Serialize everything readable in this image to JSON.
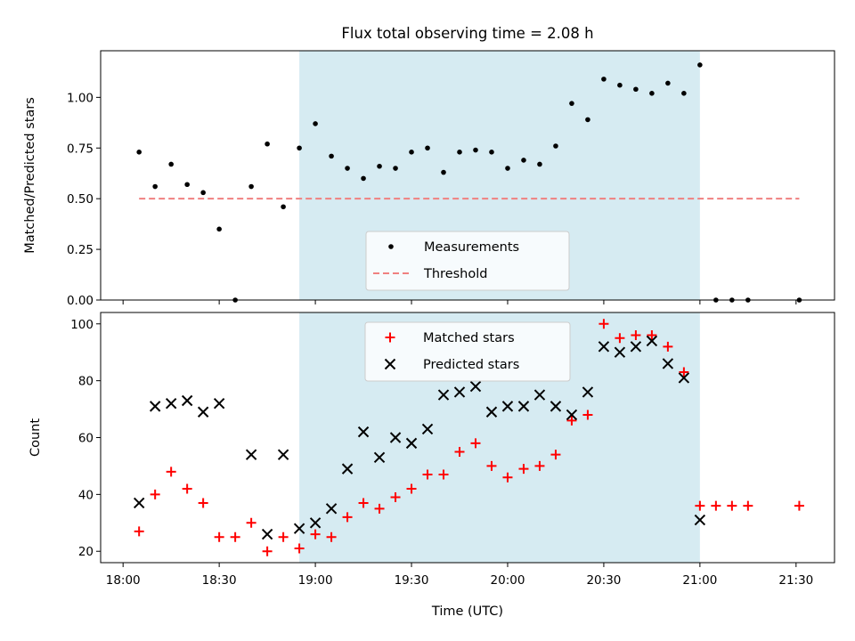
{
  "figure": {
    "title": "Flux total observing time = 2.08 h",
    "shaded_interval": [
      "18:55",
      "21:00"
    ]
  },
  "colors": {
    "shade": "#add8e6",
    "threshold": "#f08080",
    "matched": "#ff0000",
    "predicted": "#000000",
    "measurement": "#000000"
  },
  "chart_data": [
    {
      "type": "scatter",
      "panel": "top",
      "title": "Flux total observing time = 2.08 h",
      "xlabel": "",
      "ylabel": "Matched/Predicted stars",
      "xlim": [
        "17:53",
        "21:42"
      ],
      "ylim": [
        0.0,
        1.23
      ],
      "yticks": [
        "0.00",
        "0.25",
        "0.50",
        "0.75",
        "1.00"
      ],
      "legend": "lower-center",
      "series": [
        {
          "name": "Measurements",
          "marker": "dot",
          "points": [
            [
              "18:05",
              0.73
            ],
            [
              "18:10",
              0.56
            ],
            [
              "18:15",
              0.67
            ],
            [
              "18:20",
              0.57
            ],
            [
              "18:25",
              0.53
            ],
            [
              "18:30",
              0.35
            ],
            [
              "18:35",
              0.0
            ],
            [
              "18:40",
              0.56
            ],
            [
              "18:45",
              0.77
            ],
            [
              "18:50",
              0.46
            ],
            [
              "18:55",
              0.75
            ],
            [
              "19:00",
              0.87
            ],
            [
              "19:05",
              0.71
            ],
            [
              "19:10",
              0.65
            ],
            [
              "19:15",
              0.6
            ],
            [
              "19:20",
              0.66
            ],
            [
              "19:25",
              0.65
            ],
            [
              "19:30",
              0.73
            ],
            [
              "19:35",
              0.75
            ],
            [
              "19:40",
              0.63
            ],
            [
              "19:45",
              0.73
            ],
            [
              "19:50",
              0.74
            ],
            [
              "19:55",
              0.73
            ],
            [
              "20:00",
              0.65
            ],
            [
              "20:05",
              0.69
            ],
            [
              "20:10",
              0.67
            ],
            [
              "20:15",
              0.76
            ],
            [
              "20:20",
              0.97
            ],
            [
              "20:25",
              0.89
            ],
            [
              "20:30",
              1.09
            ],
            [
              "20:35",
              1.06
            ],
            [
              "20:40",
              1.04
            ],
            [
              "20:45",
              1.02
            ],
            [
              "20:50",
              1.07
            ],
            [
              "20:55",
              1.02
            ],
            [
              "21:00",
              1.16
            ],
            [
              "21:05",
              0.0
            ],
            [
              "21:10",
              0.0
            ],
            [
              "21:15",
              0.0
            ],
            [
              "21:31",
              0.0
            ]
          ]
        },
        {
          "name": "Threshold",
          "marker": "dashed-line",
          "points": [
            [
              "18:05",
              0.5
            ],
            [
              "21:31",
              0.5
            ]
          ]
        }
      ]
    },
    {
      "type": "scatter",
      "panel": "bottom",
      "xlabel": "Time (UTC)",
      "ylabel": "Count",
      "xlim": [
        "17:53",
        "21:42"
      ],
      "ylim": [
        16,
        104
      ],
      "xticks": [
        "18:00",
        "18:30",
        "19:00",
        "19:30",
        "20:00",
        "20:30",
        "21:00",
        "21:30"
      ],
      "yticks": [
        "20",
        "40",
        "60",
        "80",
        "100"
      ],
      "legend": "upper-center",
      "series": [
        {
          "name": "Matched stars",
          "marker": "plus",
          "points": [
            [
              "18:05",
              27
            ],
            [
              "18:10",
              40
            ],
            [
              "18:15",
              48
            ],
            [
              "18:20",
              42
            ],
            [
              "18:25",
              37
            ],
            [
              "18:30",
              25
            ],
            [
              "18:35",
              25
            ],
            [
              "18:40",
              30
            ],
            [
              "18:45",
              20
            ],
            [
              "18:50",
              25
            ],
            [
              "18:55",
              21
            ],
            [
              "19:00",
              26
            ],
            [
              "19:05",
              25
            ],
            [
              "19:10",
              32
            ],
            [
              "19:15",
              37
            ],
            [
              "19:20",
              35
            ],
            [
              "19:25",
              39
            ],
            [
              "19:30",
              42
            ],
            [
              "19:35",
              47
            ],
            [
              "19:40",
              47
            ],
            [
              "19:45",
              55
            ],
            [
              "19:50",
              58
            ],
            [
              "19:55",
              50
            ],
            [
              "20:00",
              46
            ],
            [
              "20:05",
              49
            ],
            [
              "20:10",
              50
            ],
            [
              "20:15",
              54
            ],
            [
              "20:20",
              66
            ],
            [
              "20:25",
              68
            ],
            [
              "20:30",
              100
            ],
            [
              "20:35",
              95
            ],
            [
              "20:40",
              96
            ],
            [
              "20:45",
              96
            ],
            [
              "20:50",
              92
            ],
            [
              "20:55",
              83
            ],
            [
              "21:00",
              36
            ],
            [
              "21:05",
              36
            ],
            [
              "21:10",
              36
            ],
            [
              "21:15",
              36
            ],
            [
              "21:31",
              36
            ]
          ]
        },
        {
          "name": "Predicted stars",
          "marker": "x",
          "points": [
            [
              "18:05",
              37
            ],
            [
              "18:10",
              71
            ],
            [
              "18:15",
              72
            ],
            [
              "18:20",
              73
            ],
            [
              "18:25",
              69
            ],
            [
              "18:30",
              72
            ],
            [
              "18:40",
              54
            ],
            [
              "18:45",
              26
            ],
            [
              "18:50",
              54
            ],
            [
              "18:55",
              28
            ],
            [
              "19:00",
              30
            ],
            [
              "19:05",
              35
            ],
            [
              "19:10",
              49
            ],
            [
              "19:15",
              62
            ],
            [
              "19:20",
              53
            ],
            [
              "19:25",
              60
            ],
            [
              "19:30",
              58
            ],
            [
              "19:35",
              63
            ],
            [
              "19:40",
              75
            ],
            [
              "19:45",
              76
            ],
            [
              "19:50",
              78
            ],
            [
              "19:55",
              69
            ],
            [
              "20:00",
              71
            ],
            [
              "20:05",
              71
            ],
            [
              "20:10",
              75
            ],
            [
              "20:15",
              71
            ],
            [
              "20:20",
              68
            ],
            [
              "20:25",
              76
            ],
            [
              "20:30",
              92
            ],
            [
              "20:35",
              90
            ],
            [
              "20:40",
              92
            ],
            [
              "20:45",
              94
            ],
            [
              "20:50",
              86
            ],
            [
              "20:55",
              81
            ],
            [
              "21:00",
              31
            ]
          ]
        }
      ]
    }
  ]
}
